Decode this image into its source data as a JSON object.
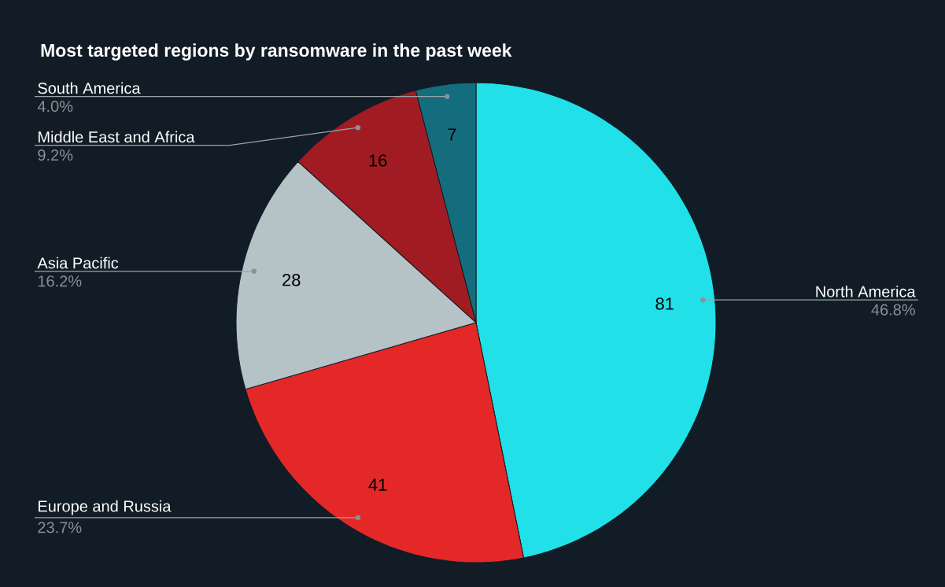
{
  "chart_data": {
    "type": "pie",
    "title": "Most targeted regions by ransomware in the past week",
    "categories": [
      "North America",
      "Europe and Russia",
      "Asia Pacific",
      "Middle East and Africa",
      "South America"
    ],
    "values": [
      81,
      41,
      28,
      16,
      7
    ],
    "colors": [
      "#22e0e8",
      "#e42828",
      "#b5c3c6",
      "#a01c22",
      "#146d7c"
    ],
    "data_labels": true,
    "annotations": [
      "46.8%",
      "23.7%",
      "16.2%",
      "9.2%",
      "4.0%"
    ]
  }
}
